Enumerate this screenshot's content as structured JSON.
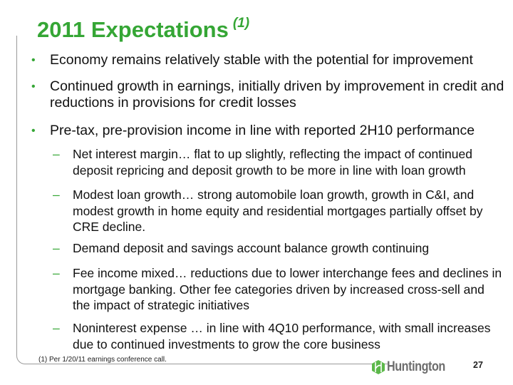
{
  "title": "2011 Expectations",
  "title_note": "(1)",
  "colors": {
    "accent": "#35a635",
    "text": "#111111",
    "logo_gray": "#6d6d6d"
  },
  "bullets": [
    {
      "text": "Economy remains relatively stable with the potential for improvement"
    },
    {
      "text": "Continued growth in earnings, initially driven by improvement in credit and reductions in provisions for credit losses"
    },
    {
      "text": "Pre-tax, pre-provision income in line with reported 2H10 performance"
    }
  ],
  "sub_bullets": [
    {
      "text": "Net interest margin… flat to up slightly, reflecting the impact of continued deposit repricing and deposit growth to be more in line with loan growth"
    },
    {
      "text": "Modest loan growth… strong automobile loan growth, growth in C&I, and modest growth in home equity and residential mortgages partially offset by CRE decline."
    },
    {
      "text": "Demand deposit and savings account balance growth continuing"
    },
    {
      "text": "Fee income mixed… reductions due to lower interchange fees and declines in mortgage banking. Other fee categories driven by increased cross-sell and the impact of  strategic initiatives"
    },
    {
      "text": "Noninterest expense … in line with 4Q10 performance, with small increases due to continued investments to grow the core business"
    }
  ],
  "bullet_marker": "•",
  "sub_marker": "–",
  "footnote": "(1)  Per 1/20/11 earnings conference call.",
  "page_number": "27",
  "logo": {
    "text": "Huntington",
    "icon": "huntington-hex-logo"
  }
}
